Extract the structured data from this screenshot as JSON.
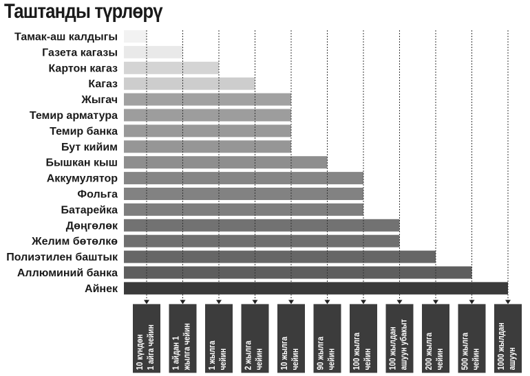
{
  "chart_data": {
    "type": "bar",
    "title": "Таштанды түрлөрү",
    "orientation": "horizontal",
    "xlabel": "",
    "ylabel": "",
    "categories": [
      "Тамак-аш калдыгы",
      "Газета кагазы",
      "Картон кагаз",
      "Кагаз",
      "Жыгач",
      "Темир арматура",
      "Темир банка",
      "Бут кийим",
      "Бышкан кыш",
      "Аккумулятор",
      "Фольга",
      "Батарейка",
      "Дөңгөлөк",
      "Желим бөтөлкө",
      "Полиэтилен баштык",
      "Аллюминий банка",
      "Айнек"
    ],
    "values": [
      1,
      2,
      3,
      4,
      5,
      5,
      5,
      5,
      6,
      7,
      7,
      7,
      8,
      8,
      9,
      10,
      11
    ],
    "x_scale": "ordinal decomposition time",
    "x_ticks": [
      [
        "10 күндөн",
        "1 айга чейин"
      ],
      [
        "1 айдан 1",
        "жылга чейин"
      ],
      [
        "1 жылга",
        "чейин"
      ],
      [
        "2 жылга",
        "чейин"
      ],
      [
        "10 жылга",
        "чейин"
      ],
      [
        "90 жылга",
        "чейин"
      ],
      [
        "100 жылга",
        "чейин"
      ],
      [
        "100 жылдан",
        "ашуун убакыт"
      ],
      [
        "200 жылга",
        "чейин"
      ],
      [
        "500 жылга",
        "чейин"
      ],
      [
        "1000 жылдан",
        "ашуун"
      ]
    ],
    "bar_colors": [
      "#f2f2f2",
      "#e9e9e9",
      "#d4d4d4",
      "#cdcdcd",
      "#a1a1a1",
      "#9d9d9d",
      "#999999",
      "#969696",
      "#8e8e8e",
      "#858585",
      "#828282",
      "#7e7e7e",
      "#727272",
      "#6f6f6f",
      "#666666",
      "#5e5e5e",
      "#3a3a3a"
    ],
    "tick_box_color": "#3c3c3c",
    "grid": "dashed vertical lines at each tick"
  }
}
